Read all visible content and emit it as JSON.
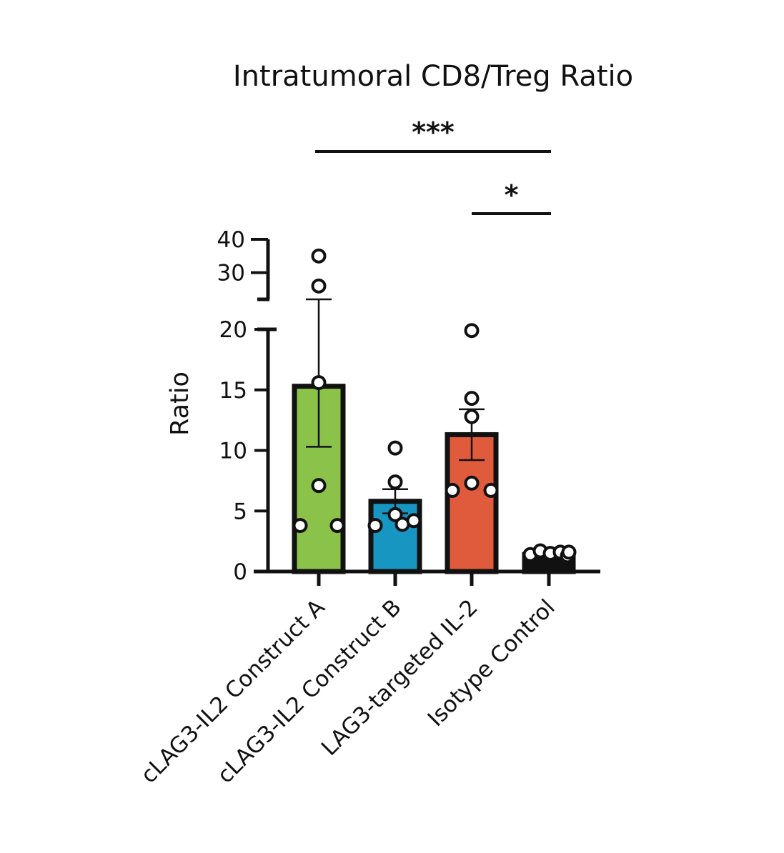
{
  "chart_data": {
    "type": "bar",
    "title": "Intratumoral CD8/Treg Ratio",
    "ylabel": "Ratio",
    "xlabel": "",
    "categories": [
      "cLAG3-IL2 Construct A",
      "cLAG3-IL2 Construct B",
      "LAG3-targeted IL-2",
      "Isotype Control"
    ],
    "values": [
      15.3,
      5.8,
      11.3,
      1.4
    ],
    "error": [
      5.0,
      1.0,
      2.1,
      0.1
    ],
    "points": [
      [
        35,
        26,
        15.6,
        7.1,
        3.8,
        3.8
      ],
      [
        10.2,
        7.4,
        4.7,
        3.8,
        3.9,
        4.2
      ],
      [
        19.9,
        14.3,
        12.8,
        7.3,
        6.7,
        6.7
      ],
      [
        1.4,
        1.7,
        1.5,
        1.6,
        1.3,
        1.6
      ]
    ],
    "colors": [
      "#8BC34A",
      "#1896C2",
      "#E05B3C",
      "#111111"
    ],
    "y_lower": {
      "range": [
        0,
        20
      ],
      "ticks": [
        0,
        5,
        10,
        15,
        20
      ],
      "tick_labels": [
        "0",
        "5",
        "10",
        "15",
        "20"
      ]
    },
    "y_upper": {
      "range": [
        22,
        40
      ],
      "ticks": [
        30,
        40
      ],
      "tick_labels": [
        "30",
        "40"
      ]
    },
    "axis_break": true,
    "significance": [
      {
        "label": "***",
        "from": 0,
        "to": 3
      },
      {
        "label": "*",
        "from": 2,
        "to": 3
      }
    ],
    "grid": false,
    "legend": "none"
  }
}
